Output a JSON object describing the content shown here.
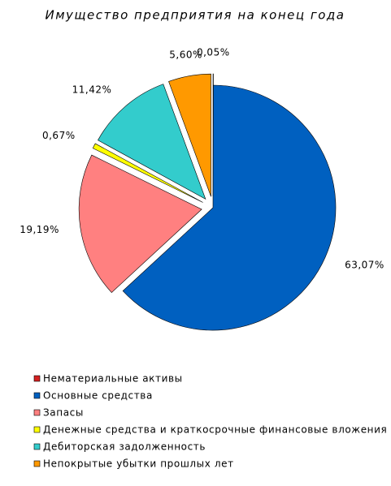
{
  "chart_data": {
    "type": "pie",
    "title": "Имущество предприятия на конец года",
    "categories": [
      "Нематериальные активы",
      "Основные средства",
      "Запасы",
      "Денежные средства и краткосрочные финансовые вложения",
      "Дебиторская задолженность",
      "Непокрытые убытки прошлых лет"
    ],
    "values": [
      0.05,
      63.07,
      19.19,
      0.67,
      11.42,
      5.6
    ],
    "value_labels": [
      "0,05%",
      "63,07%",
      "19,19%",
      "0,67%",
      "11,42%",
      "5,60%"
    ],
    "colors": [
      "#d42020",
      "#0060c0",
      "#ff8080",
      "#ffff00",
      "#33cccc",
      "#ff9900"
    ]
  }
}
